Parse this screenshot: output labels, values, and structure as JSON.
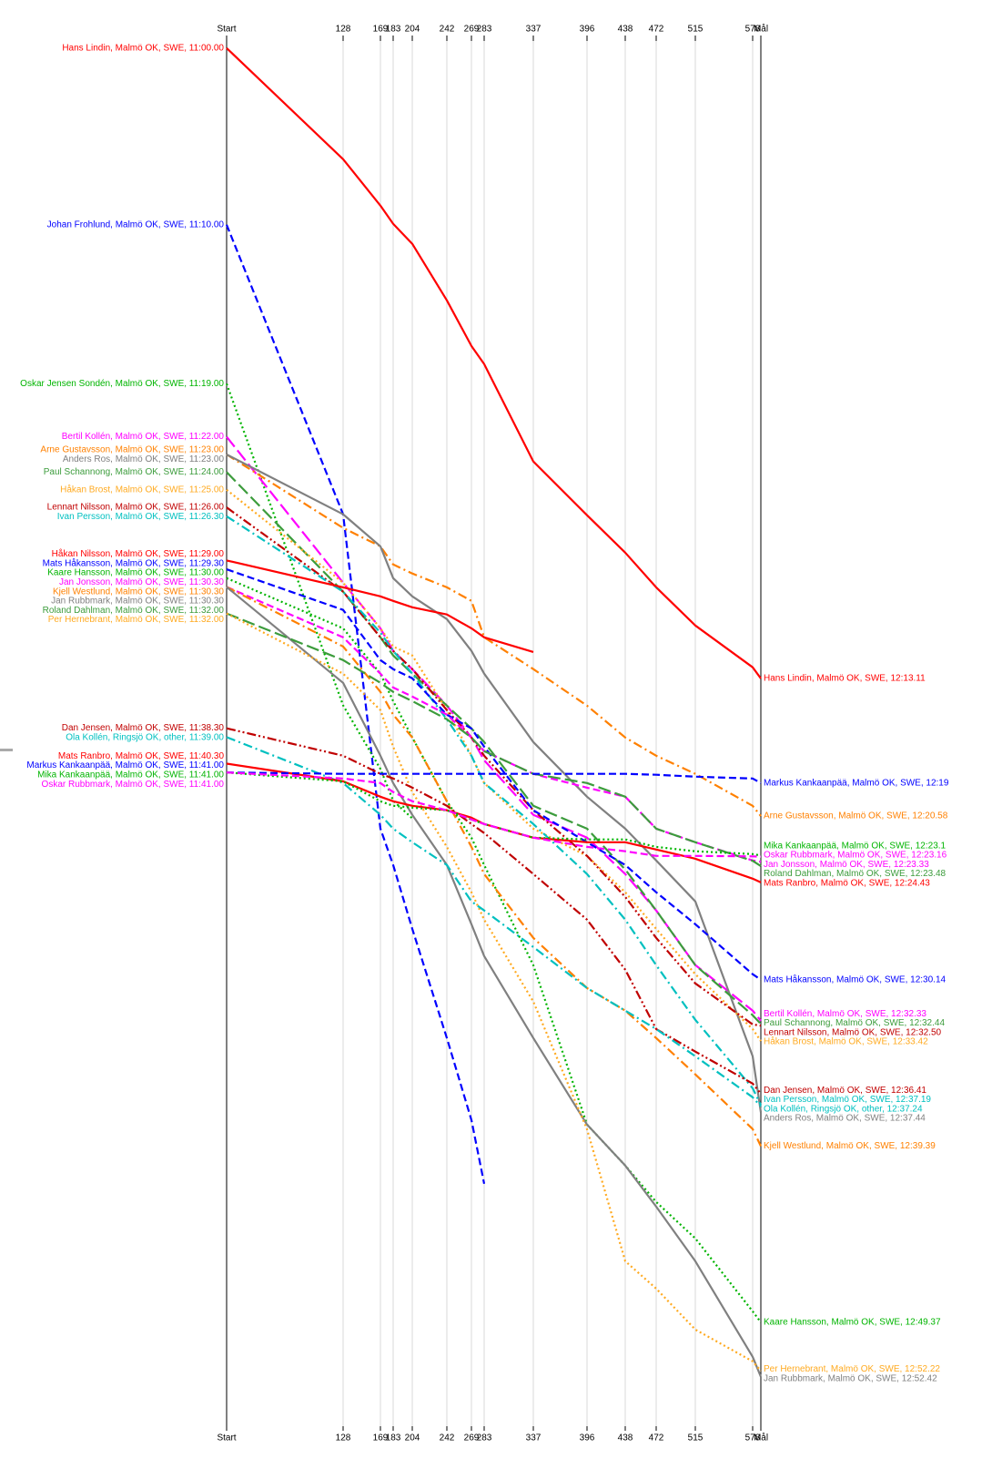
{
  "chart_data": {
    "type": "line",
    "x": [
      0,
      128,
      169,
      183,
      204,
      242,
      269,
      283,
      337,
      396,
      438,
      472,
      515,
      578,
      587
    ],
    "xlim": [
      0,
      587
    ],
    "xticks": [
      {
        "value": 0,
        "label": "Start"
      },
      128,
      169,
      183,
      204,
      242,
      269,
      283,
      337,
      396,
      438,
      472,
      515,
      578,
      {
        "value": 587,
        "label": "Mål"
      }
    ],
    "xtick_labels_override": null,
    "ylim": [
      -0.4,
      78
    ],
    "grid": true,
    "series": [
      {
        "name": "Hans Lindin, Malmö OK, SWE, 11:00.00",
        "finish_label": "Hans Lindin, Malmö OK, SWE, 12:13.11",
        "color": "#ff0000",
        "dash": "solid",
        "values": [
          0,
          6.29,
          8.92,
          9.95,
          11.08,
          14.28,
          16.86,
          17.89,
          23.4,
          26.44,
          28.56,
          30.52,
          32.68,
          35.05,
          35.68
        ]
      },
      {
        "name": "Johan Frohlund, Malmö OK, SWE, 11:10.00",
        "color": "#0000ff",
        "dash": "dashed",
        "values": [
          10,
          26.39,
          44.18,
          46.24,
          49.85,
          56.03,
          60.67,
          64.28,
          null,
          null,
          null,
          null,
          null,
          null,
          null
        ]
      },
      {
        "name": "Oskar Jensen Sondén, Malmö OK, SWE, 11:19.00",
        "color": "#00b400",
        "dash": "dotted",
        "values": [
          19,
          37.2,
          40.8,
          42.6,
          43.6,
          null,
          null,
          null,
          null,
          null,
          null,
          null,
          null,
          null,
          null
        ]
      },
      {
        "name": "Bertil Kollén, Malmö OK, SWE, 11:22.00",
        "finish_label": "Bertil Kollén, Malmö OK, SWE, 12:32.33",
        "color": "#ff00ff",
        "dash": "longdash",
        "values": [
          22,
          30.26,
          32.84,
          34.12,
          35.15,
          37.21,
          39.02,
          40.31,
          43.4,
          44.69,
          46.75,
          48.81,
          51.9,
          54.48,
          55.05
        ]
      },
      {
        "name": "Arne Gustavsson, Malmö OK, SWE, 11:23.00",
        "finish_label": "Arne Gustavsson, Malmö OK, SWE, 12:20.58",
        "color": "#ff8000",
        "dash": "dashdot",
        "values": [
          23,
          27.16,
          28.2,
          29.23,
          29.74,
          30.52,
          31.29,
          33.35,
          35.15,
          37.22,
          39.02,
          40.05,
          41.08,
          42.89,
          43.47
        ]
      },
      {
        "name": "Anders Ros, Malmö OK, SWE, 11:23.00",
        "finish_label": "Anders Ros, Malmö OK, SWE, 12:37.44",
        "color": "#808080",
        "dash": "solid",
        "values": [
          23,
          26.39,
          28.2,
          30,
          31.03,
          32.32,
          34.12,
          35.41,
          39.28,
          42.37,
          44.18,
          45.98,
          48.3,
          57.06,
          60.23
        ]
      },
      {
        "name": "Paul Schannong, Malmö OK, SWE, 11:24.00",
        "finish_label": "Paul Schannong, Malmö OK, SWE, 12:32.44",
        "color": "#3c9c3c",
        "dash": "longdash",
        "values": [
          24,
          30.77,
          33.35,
          34.38,
          35.41,
          37.22,
          38.51,
          39.28,
          42.89,
          44.18,
          46.49,
          48.81,
          51.91,
          54.74,
          55.23
        ]
      },
      {
        "name": "Håkan Brost, Malmö OK, SWE, 11:25.00",
        "finish_label": "Håkan Brost, Malmö OK, SWE, 12:33.42",
        "color": "#ffaa20",
        "dash": "dotted",
        "values": [
          25,
          30.26,
          32.84,
          33.87,
          34.38,
          37.47,
          40.05,
          41.6,
          44.18,
          45.72,
          47.78,
          49.85,
          52.42,
          55.52,
          56.2
        ]
      },
      {
        "name": "Lennart Nilsson, Malmö OK, SWE, 11:26.00",
        "finish_label": "Lennart Nilsson, Malmö OK, SWE, 12:32.50",
        "color": "#c00000",
        "dash": "dashdotdot",
        "values": [
          26,
          30.77,
          33.35,
          34.12,
          35.15,
          37.47,
          39.02,
          40.05,
          43.14,
          45.72,
          48.04,
          50.36,
          52.94,
          55.26,
          55.33
        ]
      },
      {
        "name": "Ivan Persson, Malmö OK, SWE, 11:26.30",
        "finish_label": "Ivan Persson, Malmö OK, SWE, 12:37.19",
        "color": "#00c0c0",
        "dash": "dashdot",
        "values": [
          26.5,
          30.77,
          33.09,
          34.12,
          35.41,
          37.99,
          40.05,
          41.6,
          43.92,
          46.75,
          49.33,
          51.91,
          55,
          58.87,
          59.82
        ]
      },
      {
        "name": "Håkan Nilsson, Malmö OK, SWE, 11:29.00",
        "color": "#ff0000",
        "dash": "solid",
        "values": [
          29,
          30.52,
          31.03,
          31.29,
          31.65,
          32.06,
          32.84,
          33.35,
          34.18,
          null,
          null,
          null,
          null,
          null,
          null
        ]
      },
      {
        "name": "Mats Håkansson, Malmö OK, SWE, 11:29.30",
        "finish_label": "Mats Håkansson, Malmö OK, SWE, 12:30.14",
        "color": "#0000ff",
        "dash": "dashed",
        "values": [
          29.5,
          31.8,
          34.64,
          35.15,
          35.67,
          37.73,
          38.51,
          39.54,
          43.14,
          44.95,
          46.24,
          47.78,
          49.59,
          52.42,
          52.73
        ]
      },
      {
        "name": "Kaare Hansson, Malmö OK, SWE, 11:30.00",
        "finish_label": "Kaare Hansson, Malmö OK, SWE, 12:49.37",
        "color": "#00b400",
        "dash": "dotted",
        "values": [
          30,
          32.84,
          35.41,
          36.96,
          39.02,
          42.63,
          44.69,
          46.24,
          51.91,
          60.93,
          63.25,
          65.31,
          67.37,
          71.5,
          72.12
        ]
      },
      {
        "name": "Jan Jonsson, Malmö OK, SWE, 11:30.30",
        "finish_label": "Jan Jonsson, Malmö OK, SWE, 12:23.33",
        "color": "#ff00ff",
        "dash": "dashed",
        "values": [
          30.5,
          33.35,
          35.41,
          36.19,
          36.7,
          37.73,
          39.02,
          39.79,
          41.08,
          41.86,
          42.37,
          44.18,
          44.95,
          45.98,
          46.05
        ]
      },
      {
        "name": "Kjell Westlund, Malmö OK, SWE, 11:30.30",
        "finish_label": "Kjell Westlund, Malmö OK, SWE, 12:39.39",
        "color": "#ff8000",
        "dash": "dashdot",
        "values": [
          30.5,
          33.87,
          36.44,
          37.73,
          39.02,
          42.63,
          45.21,
          46.75,
          50.36,
          53.2,
          54.48,
          56.03,
          58.09,
          61.18,
          62.15
        ]
      },
      {
        "name": "Jan Rubbmark, Malmö OK, SWE, 11:30.30",
        "finish_label": "Jan Rubbmark, Malmö OK, SWE, 12:52.42",
        "color": "#808080",
        "dash": "solid",
        "values": [
          30.5,
          35.93,
          40.05,
          41.6,
          43.4,
          46.24,
          49.59,
          51.39,
          56.03,
          60.93,
          63.25,
          65.57,
          68.66,
          74.07,
          75.2
        ]
      },
      {
        "name": "Roland Dahlman, Malmö OK, SWE, 11:32.00",
        "finish_label": "Roland Dahlman, Malmö OK, SWE, 12:23.48",
        "color": "#3c9c3c",
        "dash": "longdash",
        "values": [
          32,
          34.64,
          35.93,
          36.44,
          36.96,
          37.99,
          39.02,
          39.79,
          41.08,
          41.6,
          42.37,
          44.18,
          44.95,
          46,
          46.3
        ]
      },
      {
        "name": "Per Hernebrant, Malmö OK, SWE, 11:32.00",
        "finish_label": "Per Hernebrant, Malmö OK, SWE, 12:52.22",
        "color": "#ffaa20",
        "dash": "dotted",
        "values": [
          32,
          35.41,
          37.47,
          39.54,
          42.11,
          45.21,
          47.78,
          49.33,
          53.97,
          61.19,
          68.66,
          70.21,
          72.53,
          74.33,
          74.87
        ]
      },
      {
        "name": "Dan Jensen, Malmö OK, SWE, 11:38.30",
        "finish_label": "Dan Jensen, Malmö OK, SWE, 12:36.41",
        "color": "#c00000",
        "dash": "dashdotdot",
        "values": [
          38.5,
          40.05,
          41.08,
          41.34,
          41.86,
          42.89,
          43.92,
          44.43,
          46.75,
          49.33,
          52.16,
          55.52,
          56.8,
          58.61,
          59.18
        ]
      },
      {
        "name": "Ola Kollén, Ringsjö OK, other, 11:39.00",
        "finish_label": "Ola Kollén, Ringsjö OK, other, 12:37.24",
        "color": "#00c0c0",
        "dash": "dashdot",
        "values": [
          39,
          41.6,
          43.4,
          44.18,
          44.95,
          46.24,
          48.3,
          48.81,
          50.88,
          53.2,
          54.48,
          55.52,
          57.06,
          59.38,
          59.9
        ]
      },
      {
        "name": "Mats Ranbro, Malmö OK, SWE, 11:40.30",
        "finish_label": "Mats Ranbro, Malmö OK, SWE, 12:24.43",
        "color": "#ff0000",
        "dash": "solid",
        "values": [
          40.5,
          41.5,
          42.37,
          42.63,
          42.89,
          43.14,
          43.56,
          43.92,
          44.69,
          44.95,
          44.95,
          45.36,
          45.88,
          47.01,
          47.22
        ]
      },
      {
        "name": "Markus Kankaanpää, Malmö OK, SWE, 11:41.00",
        "finish_label": "Markus Kankaanpää, Malmö OK, SWE, 12:19",
        "color": "#0000ff",
        "dash": "dashed",
        "values": [
          41,
          41.08,
          41.08,
          41.08,
          41.08,
          41.08,
          41.08,
          41.08,
          41.08,
          41.08,
          41.08,
          41.13,
          41.24,
          41.34,
          41.6
        ]
      },
      {
        "name": "Mika Kankaanpää, Malmö OK, SWE, 11:41.00",
        "finish_label": "Mika Kankaanpää, Malmö OK, SWE, 12:23.1",
        "color": "#00b400",
        "dash": "dotted",
        "values": [
          41,
          41.5,
          42.63,
          42.89,
          42.99,
          43.14,
          43.66,
          43.92,
          44.69,
          44.79,
          44.79,
          45.21,
          45.46,
          45.62,
          45.7
        ]
      },
      {
        "name": "Oskar Rubbmark, Malmö OK, SWE, 11:41.00",
        "finish_label": "Oskar Rubbmark, Malmö OK, SWE, 12:23.16",
        "color": "#ff00ff",
        "dash": "dashed",
        "values": [
          41,
          41.34,
          41.6,
          42.11,
          42.63,
          43.14,
          43.66,
          43.92,
          44.69,
          45.21,
          45.46,
          45.72,
          45.72,
          45.75,
          45.77
        ]
      }
    ]
  }
}
